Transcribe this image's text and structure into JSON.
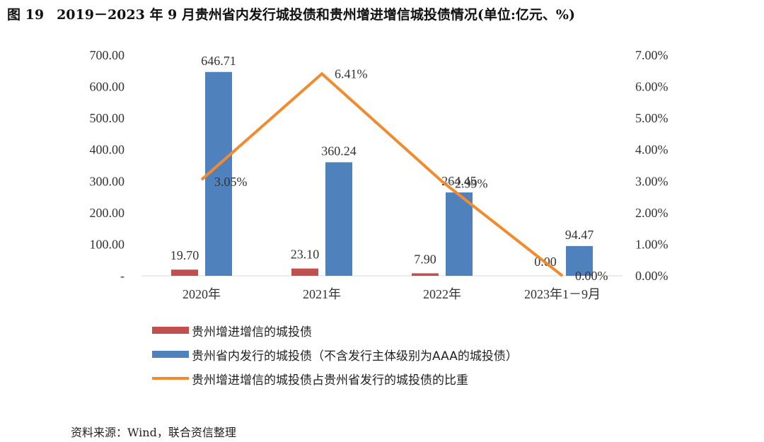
{
  "title": {
    "figure_no": "图 19",
    "text": "2019－2023 年 9 月贵州省内发行城投债和贵州增进增信城投债情况(单位:亿元、%)"
  },
  "source": "资料来源：Wind，联合资信整理",
  "colors": {
    "red_bar": "#c0504d",
    "blue_bar": "#4f81bd",
    "line": "#f28a2e"
  },
  "chart_data": {
    "type": "bar",
    "categories": [
      "2020年",
      "2021年",
      "2022年",
      "2023年1－9月"
    ],
    "y_left": {
      "ylim": [
        0,
        700
      ],
      "ticks": [
        "-",
        "100.00",
        "200.00",
        "300.00",
        "400.00",
        "500.00",
        "600.00",
        "700.00"
      ]
    },
    "y_right": {
      "ylim": [
        0,
        7
      ],
      "ticks": [
        "0.00%",
        "1.00%",
        "2.00%",
        "3.00%",
        "4.00%",
        "5.00%",
        "6.00%",
        "7.00%"
      ]
    },
    "series": [
      {
        "name": "贵州增进增信的城投债",
        "kind": "bar",
        "axis": "left",
        "values": [
          19.7,
          23.1,
          7.9,
          0.0
        ],
        "labels": [
          "19.70",
          "23.10",
          "7.90",
          "0.00"
        ]
      },
      {
        "name": "贵州省内发行的城投债（不含发行主体级别为AAA的城投债）",
        "kind": "bar",
        "axis": "left",
        "values": [
          646.71,
          360.24,
          264.45,
          94.47
        ],
        "labels": [
          "646.71",
          "360.24",
          "264.45",
          "94.47"
        ]
      },
      {
        "name": "贵州增进增信的城投债占贵州省发行的城投债的比重",
        "kind": "line",
        "axis": "right",
        "values": [
          3.05,
          6.41,
          2.99,
          0.0
        ],
        "labels": [
          "3.05%",
          "6.41%",
          "2.99%",
          "0.00%"
        ]
      }
    ],
    "grid": false,
    "legend_position": "bottom-left"
  }
}
